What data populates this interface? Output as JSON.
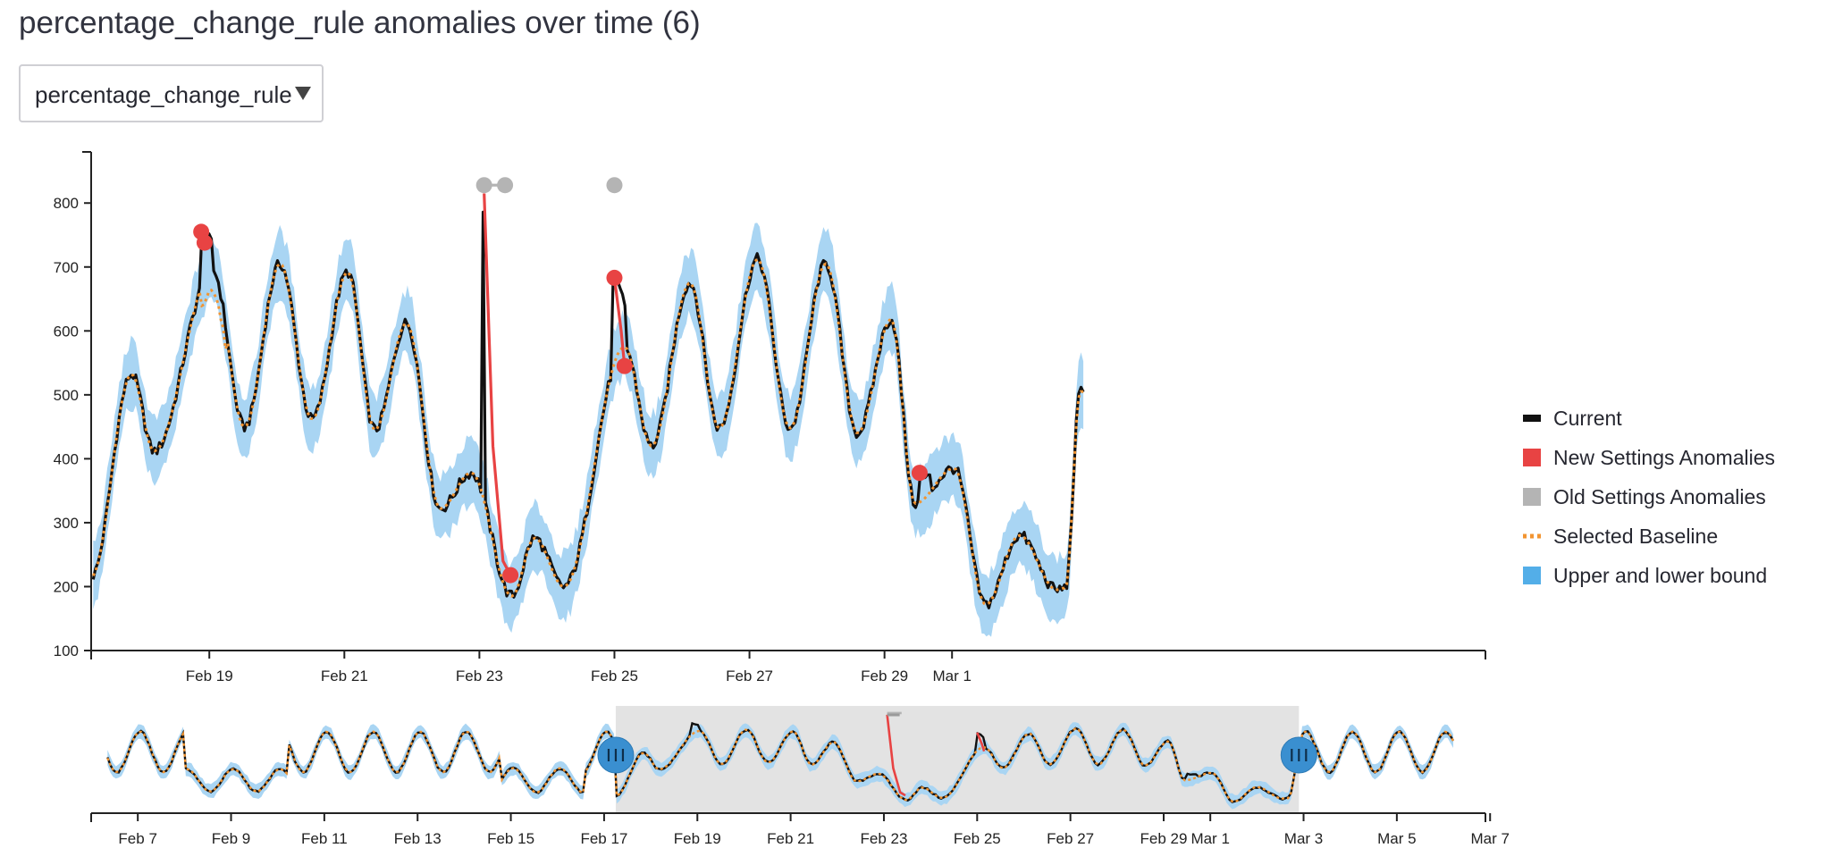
{
  "page": {
    "title": "percentage_change_rule anomalies over time (6)"
  },
  "selector": {
    "selected": "percentage_change_rule",
    "caret_icon": "triangle-down-icon"
  },
  "legend": [
    {
      "label": "Current",
      "color": "#111111",
      "swatch": "line"
    },
    {
      "label": "New Settings Anomalies",
      "color": "#e84343",
      "swatch": "square"
    },
    {
      "label": "Old Settings Anomalies",
      "color": "#b4b4b4",
      "swatch": "square"
    },
    {
      "label": "Selected Baseline",
      "color": "#f29431",
      "swatch": "dotted"
    },
    {
      "label": "Upper and lower bound",
      "color": "#53aee8",
      "swatch": "square"
    }
  ],
  "chart_data": [
    {
      "type": "line",
      "role": "main",
      "x_unit": "days since Feb 17 00:00",
      "x_range": [
        0.25,
        20.9
      ],
      "ylim": [
        100,
        880
      ],
      "yticks": [
        100,
        200,
        300,
        400,
        500,
        600,
        700,
        800
      ],
      "xticks": [
        {
          "label": "Feb 19",
          "x": 2
        },
        {
          "label": "Feb 21",
          "x": 4
        },
        {
          "label": "Feb 23",
          "x": 6
        },
        {
          "label": "Feb 25",
          "x": 8
        },
        {
          "label": "Feb 27",
          "x": 10
        },
        {
          "label": "Feb 29",
          "x": 12
        },
        {
          "label": "Mar 1",
          "x": 13
        }
      ],
      "series": [
        {
          "name": "Current",
          "color": "#111111"
        },
        {
          "name": "Selected Baseline",
          "color": "#f29431"
        },
        {
          "name": "Upper and lower bound",
          "color": "#53aee8"
        }
      ],
      "new_settings_anomalies": [
        {
          "x": 1.88,
          "y": 755
        },
        {
          "x": 1.93,
          "y": 738
        },
        {
          "x": 6.46,
          "y": 218
        },
        {
          "x": 8.0,
          "y": 683
        },
        {
          "x": 8.15,
          "y": 545
        },
        {
          "x": 12.52,
          "y": 378
        }
      ],
      "old_settings_anomalies": [
        {
          "x": 6.07,
          "y": 828
        },
        {
          "x": 6.38,
          "y": 828
        },
        {
          "x": 8.0,
          "y": 828
        }
      ],
      "anomaly_traces": [
        {
          "color": "#e84343",
          "points": [
            [
              6.07,
              815
            ],
            [
              6.2,
              420
            ],
            [
              6.35,
              240
            ],
            [
              6.46,
              218
            ]
          ]
        },
        {
          "color": "#e84343",
          "points": [
            [
              8.0,
              683
            ],
            [
              8.1,
              600
            ],
            [
              8.15,
              545
            ]
          ]
        },
        {
          "color": "#b4b4b4",
          "points": [
            [
              6.07,
              828
            ],
            [
              6.38,
              828
            ]
          ]
        }
      ],
      "profile": {
        "peaks": [
          {
            "x": 0.85,
            "y": 532
          },
          {
            "x": 2.05,
            "y": 695
          },
          {
            "x": 3.05,
            "y": 705
          },
          {
            "x": 4.05,
            "y": 692
          },
          {
            "x": 4.92,
            "y": 612
          },
          {
            "x": 5.88,
            "y": 378
          },
          {
            "x": 6.82,
            "y": 276
          },
          {
            "x": 8.15,
            "y": 575
          },
          {
            "x": 9.12,
            "y": 675
          },
          {
            "x": 10.12,
            "y": 712
          },
          {
            "x": 11.13,
            "y": 705
          },
          {
            "x": 12.1,
            "y": 618
          },
          {
            "x": 13.03,
            "y": 385
          },
          {
            "x": 14.0,
            "y": 280
          }
        ],
        "troughs": [
          {
            "x": 0.25,
            "y": 215
          },
          {
            "x": 1.18,
            "y": 412
          },
          {
            "x": 2.52,
            "y": 450
          },
          {
            "x": 3.52,
            "y": 462
          },
          {
            "x": 4.45,
            "y": 445
          },
          {
            "x": 5.42,
            "y": 322
          },
          {
            "x": 6.48,
            "y": 185
          },
          {
            "x": 7.25,
            "y": 200
          },
          {
            "x": 8.55,
            "y": 420
          },
          {
            "x": 9.55,
            "y": 448
          },
          {
            "x": 10.6,
            "y": 448
          },
          {
            "x": 11.6,
            "y": 440
          },
          {
            "x": 12.45,
            "y": 330
          },
          {
            "x": 13.5,
            "y": 172
          },
          {
            "x": 14.55,
            "y": 195
          },
          {
            "x": 14.68,
            "y": 198
          },
          {
            "x": 14.9,
            "y": 505
          }
        ]
      },
      "current_spikes": [
        {
          "x": 1.88,
          "y": 755
        },
        {
          "x": 6.07,
          "y": 815
        },
        {
          "x": 8.0,
          "y": 683
        },
        {
          "x": 12.52,
          "y": 378
        }
      ]
    },
    {
      "type": "line",
      "role": "range-navigator",
      "x_unit": "days since Feb 6 00:00",
      "x_range": [
        0.0,
        29.9
      ],
      "xticks": [
        {
          "label": "Feb 7",
          "x": 1
        },
        {
          "label": "Feb 9",
          "x": 3
        },
        {
          "label": "Feb 11",
          "x": 5
        },
        {
          "label": "Feb 13",
          "x": 7
        },
        {
          "label": "Feb 15",
          "x": 9
        },
        {
          "label": "Feb 17",
          "x": 11
        },
        {
          "label": "Feb 19",
          "x": 13
        },
        {
          "label": "Feb 21",
          "x": 15
        },
        {
          "label": "Feb 23",
          "x": 17
        },
        {
          "label": "Feb 25",
          "x": 19
        },
        {
          "label": "Feb 27",
          "x": 21
        },
        {
          "label": "Feb 29",
          "x": 23
        },
        {
          "label": "Mar 1",
          "x": 24
        },
        {
          "label": "Mar 3",
          "x": 26
        },
        {
          "label": "Mar 5",
          "x": 28
        },
        {
          "label": "Mar 7",
          "x": 30
        }
      ],
      "selection": [
        11.25,
        25.9
      ],
      "handle_icon": "grip-handle-icon"
    }
  ]
}
